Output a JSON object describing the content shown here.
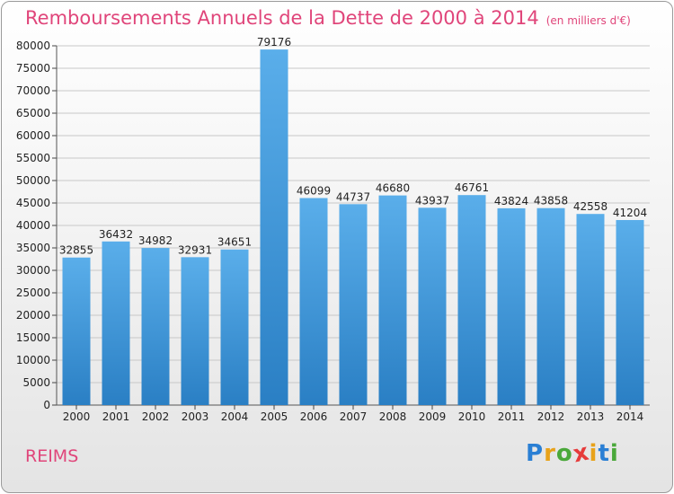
{
  "chart_data": {
    "type": "bar",
    "title": "Remboursements Annuels de la Dette de 2000 à 2014",
    "unit_note": "(en milliers d'€)",
    "categories": [
      "2000",
      "2001",
      "2002",
      "2003",
      "2004",
      "2005",
      "2006",
      "2007",
      "2008",
      "2009",
      "2010",
      "2011",
      "2012",
      "2013",
      "2014"
    ],
    "values": [
      32855,
      36432,
      34982,
      32931,
      34651,
      79176,
      46099,
      44737,
      46680,
      43937,
      46761,
      43824,
      43858,
      42558,
      41204
    ],
    "ylim": [
      0,
      80000
    ],
    "yticks": [
      0,
      5000,
      10000,
      15000,
      20000,
      25000,
      30000,
      35000,
      40000,
      45000,
      50000,
      55000,
      60000,
      65000,
      70000,
      75000,
      80000
    ],
    "grid": true,
    "bar_color": "#3d95d8",
    "xlabel": "",
    "ylabel": ""
  },
  "footer": {
    "city": "REIMS",
    "logo_letters": [
      "P",
      "r",
      "o",
      "x",
      "i",
      "t",
      "i"
    ],
    "logo_colors": [
      "#2a7fd4",
      "#e8a21a",
      "#4aa83a",
      "#e63b3b",
      "#e8a21a",
      "#2a7fd4",
      "#4aa83a"
    ]
  },
  "colors": {
    "title": "#e0457a",
    "city": "#e0457a",
    "grid": "#c8c8c8"
  }
}
